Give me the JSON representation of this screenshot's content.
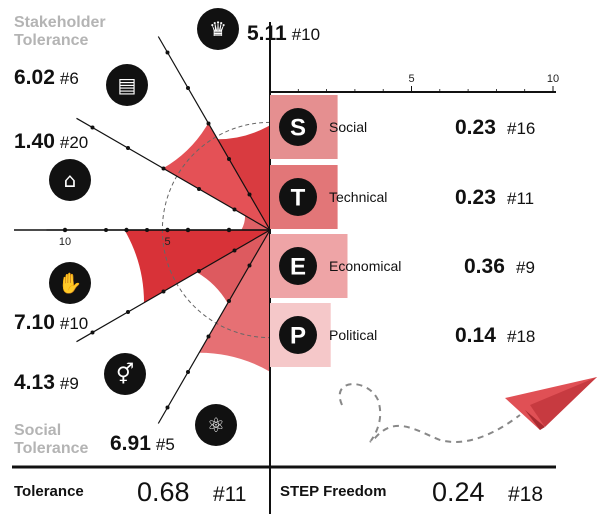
{
  "chart_data": [
    {
      "type": "polar-bar",
      "title": "Stakeholder Tolerance",
      "subtitle": "Social Tolerance",
      "axis_ticks": [
        "10",
        "5"
      ],
      "rlim": [
        0,
        10
      ],
      "segments": [
        {
          "value": 5.11,
          "rank": "#10",
          "icon": "women-icon"
        },
        {
          "value": 6.02,
          "rank": "#6",
          "icon": "briefcase-icon"
        },
        {
          "value": 1.4,
          "rank": "#20",
          "icon": "government-building-icon"
        },
        {
          "value": 7.1,
          "rank": "#10",
          "icon": "hand-eye-icon"
        },
        {
          "value": 4.13,
          "rank": "#9",
          "icon": "gender-icon"
        },
        {
          "value": 6.91,
          "rank": "#5",
          "icon": "atom-icon"
        }
      ]
    },
    {
      "type": "bar",
      "orientation": "horizontal",
      "title": "STEP Freedom",
      "xlim": [
        0,
        10
      ],
      "x_ticks": [
        "5",
        "10"
      ],
      "categories": [
        "Social",
        "Technical",
        "Economical",
        "Political"
      ],
      "letters": [
        "S",
        "T",
        "E",
        "P"
      ],
      "values": [
        0.23,
        0.23,
        0.36,
        0.14
      ],
      "ranks": [
        "#16",
        "#11",
        "#9",
        "#18"
      ]
    }
  ],
  "footer": {
    "left_label": "Tolerance",
    "left_value": "0.68",
    "left_rank": "#11",
    "right_label": "STEP Freedom",
    "right_value": "0.24",
    "right_rank": "#18"
  },
  "colors": {
    "bar_social": "#e58f90",
    "bar_technical": "#e27678",
    "bar_economical": "#eea4a6",
    "bar_political": "#f5c8c9",
    "accent": "#d43a3e",
    "plane": "#e05055"
  }
}
